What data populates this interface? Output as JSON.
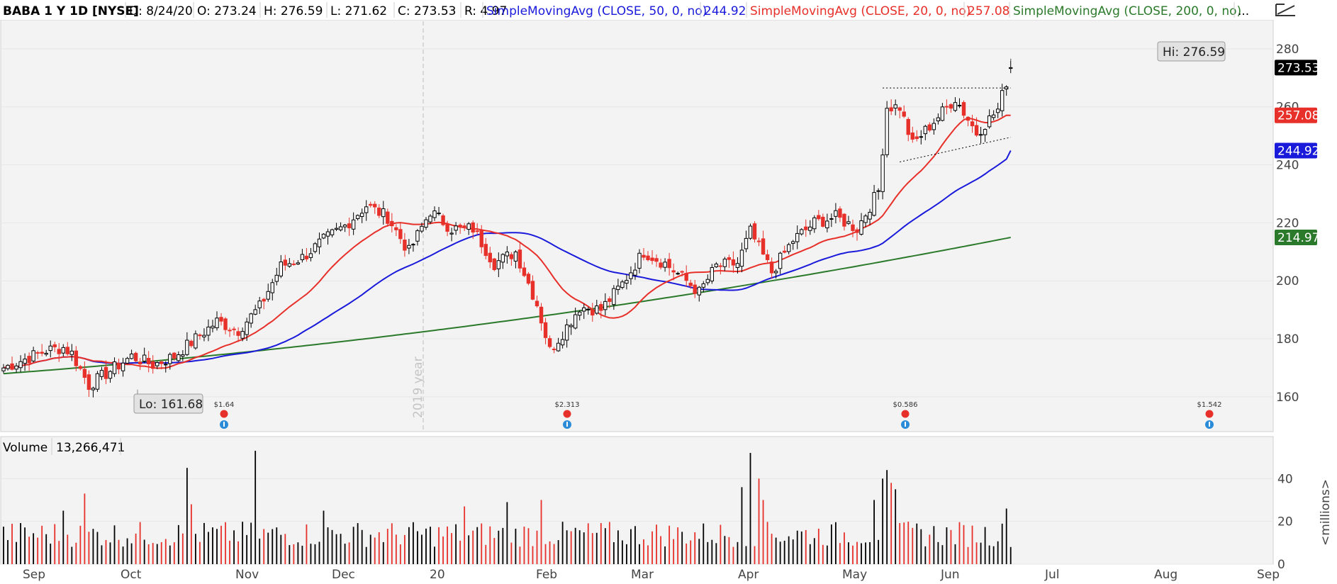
{
  "header": {
    "symbol": "BABA 1 Y 1D [NYSE]",
    "date": "D: 8/24/20",
    "open": "O: 273.24",
    "high": "H: 276.59",
    "low": "L: 271.62",
    "close": "C: 273.53",
    "range": "R: 4.97",
    "sma50_label": "SimpleMovingAvg (CLOSE, 50, 0, no)",
    "sma50_value": "244.92",
    "sma20_label": "SimpleMovingAvg (CLOSE, 20, 0, no)",
    "sma20_value": "257.08",
    "sma200_label": "SimpleMovingAvg (CLOSE, 200, 0, no)",
    "sma200_value": "...",
    "draw_icon": "drawing-tool-icon"
  },
  "volume_header": {
    "label": "Volume",
    "value": "13,266,471"
  },
  "colors": {
    "up": "#000000",
    "down": "#e8302a",
    "sma20": "#e8302a",
    "sma50": "#1a1adb",
    "sma200": "#2b7a2b",
    "last_price": "#000000"
  },
  "chart_data": {
    "type": "candlestick",
    "price_axis": {
      "min": 148,
      "max": 290,
      "ticks": [
        160,
        180,
        200,
        220,
        240,
        260,
        280
      ]
    },
    "volume_axis": {
      "unit": "<millions>",
      "ticks": [
        0,
        20,
        40
      ],
      "max": 55
    },
    "x_labels": [
      "Sep",
      "Oct",
      "Nov",
      "Dec",
      "20",
      "Feb",
      "Mar",
      "Apr",
      "May",
      "Jun",
      "Jul",
      "Aug",
      "Sep"
    ],
    "year_marker": "2019 year",
    "price_tags": {
      "last": "273.53",
      "sma20": "257.08",
      "sma50": "244.92",
      "sma200": "214.97"
    },
    "hi_label": "Hi: 276.59",
    "lo_label": "Lo: 161.68",
    "dividends": [
      "$1.64",
      "$2.313",
      "$0.586",
      "$1.542"
    ],
    "anchors": [
      {
        "i": 0,
        "p": 170
      },
      {
        "i": 5,
        "p": 173
      },
      {
        "i": 10,
        "p": 176
      },
      {
        "i": 14,
        "p": 177
      },
      {
        "i": 16,
        "p": 175
      },
      {
        "i": 20,
        "p": 164
      },
      {
        "i": 25,
        "p": 169
      },
      {
        "i": 30,
        "p": 174
      },
      {
        "i": 35,
        "p": 171
      },
      {
        "i": 40,
        "p": 174
      },
      {
        "i": 45,
        "p": 180
      },
      {
        "i": 50,
        "p": 186
      },
      {
        "i": 55,
        "p": 183
      },
      {
        "i": 60,
        "p": 191
      },
      {
        "i": 65,
        "p": 205
      },
      {
        "i": 70,
        "p": 208
      },
      {
        "i": 75,
        "p": 214
      },
      {
        "i": 80,
        "p": 219
      },
      {
        "i": 85,
        "p": 226
      },
      {
        "i": 90,
        "p": 222
      },
      {
        "i": 95,
        "p": 210
      },
      {
        "i": 100,
        "p": 224
      },
      {
        "i": 105,
        "p": 218
      },
      {
        "i": 110,
        "p": 218
      },
      {
        "i": 115,
        "p": 206
      },
      {
        "i": 120,
        "p": 210
      },
      {
        "i": 125,
        "p": 192
      },
      {
        "i": 128,
        "p": 176
      },
      {
        "i": 131,
        "p": 182
      },
      {
        "i": 135,
        "p": 191
      },
      {
        "i": 140,
        "p": 190
      },
      {
        "i": 145,
        "p": 199
      },
      {
        "i": 150,
        "p": 210
      },
      {
        "i": 155,
        "p": 206
      },
      {
        "i": 160,
        "p": 200
      },
      {
        "i": 163,
        "p": 196
      },
      {
        "i": 167,
        "p": 205
      },
      {
        "i": 172,
        "p": 206
      },
      {
        "i": 175,
        "p": 217
      },
      {
        "i": 180,
        "p": 203
      },
      {
        "i": 185,
        "p": 214
      },
      {
        "i": 190,
        "p": 220
      },
      {
        "i": 195,
        "p": 222
      },
      {
        "i": 200,
        "p": 218
      },
      {
        "i": 205,
        "p": 231
      },
      {
        "i": 207,
        "p": 260
      },
      {
        "i": 210,
        "p": 260
      },
      {
        "i": 213,
        "p": 247
      },
      {
        "i": 218,
        "p": 255
      },
      {
        "i": 223,
        "p": 263
      },
      {
        "i": 228,
        "p": 251
      },
      {
        "i": 233,
        "p": 259
      },
      {
        "i": 236,
        "p": 273.5
      }
    ],
    "volume_spikes": [
      {
        "i": 14,
        "v": 25
      },
      {
        "i": 19,
        "v": 33
      },
      {
        "i": 43,
        "v": 45
      },
      {
        "i": 44,
        "v": 28
      },
      {
        "i": 59,
        "v": 53
      },
      {
        "i": 75,
        "v": 25
      },
      {
        "i": 108,
        "v": 27
      },
      {
        "i": 118,
        "v": 29
      },
      {
        "i": 126,
        "v": 30
      },
      {
        "i": 173,
        "v": 36
      },
      {
        "i": 175,
        "v": 52
      },
      {
        "i": 177,
        "v": 40
      },
      {
        "i": 178,
        "v": 30
      },
      {
        "i": 204,
        "v": 30
      },
      {
        "i": 206,
        "v": 40
      },
      {
        "i": 207,
        "v": 44
      },
      {
        "i": 208,
        "v": 38
      },
      {
        "i": 209,
        "v": 35
      },
      {
        "i": 235,
        "v": 26
      }
    ]
  }
}
